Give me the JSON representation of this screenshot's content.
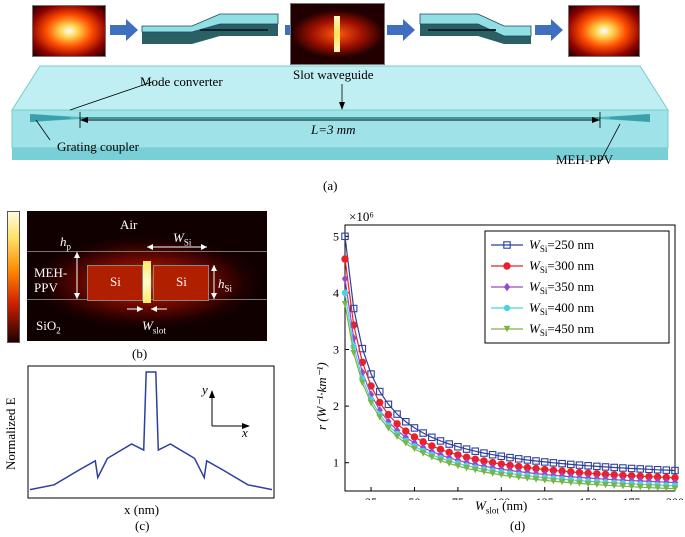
{
  "panel_a": {
    "caption": "(a)",
    "labels": {
      "mode_converter": "Mode converter",
      "slot_waveguide": "Slot waveguide",
      "length": "L=3 mm",
      "grating_coupler": "Grating coupler",
      "meh_ppv": "MEH-PPV"
    }
  },
  "panel_b": {
    "caption": "(b)",
    "labels": {
      "air": "Air",
      "hp_base": "h",
      "hp_sub": "p",
      "wsi_base": "W",
      "wsi_sub": "Si",
      "meh_line1": "MEH-",
      "meh_line2": "PPV",
      "si_left": "Si",
      "si_right": "Si",
      "hsi_base": "h",
      "hsi_sub": "Si",
      "sio2_base": "SiO",
      "sio2_sub": "2",
      "wslot_base": "W",
      "wslot_sub": "slot"
    }
  },
  "panel_c": {
    "caption": "(c)",
    "ylabel": "Normalized E",
    "xlabel": "x (nm)",
    "axis_y": "y",
    "axis_x": "x"
  },
  "panel_d": {
    "caption": "(d)",
    "xlabel_base": "W",
    "xlabel_sub": "slot",
    "xlabel_unit": " (nm)",
    "ylabel": "r (W⁻¹·km⁻¹)",
    "multiplier": "×10⁶"
  },
  "chart_data": [
    {
      "type": "line",
      "title": "",
      "xlabel": "W_slot (nm)",
      "ylabel": "r (W^-1·km^-1)",
      "y_multiplier": "×10^6",
      "xlim": [
        10,
        200
      ],
      "ylim": [
        0.5,
        5.2
      ],
      "xticks": [
        25,
        50,
        75,
        100,
        125,
        150,
        175,
        200
      ],
      "yticks": [
        1,
        2,
        3,
        4,
        5
      ],
      "legend_position": "top-right",
      "series": [
        {
          "name": "W_Si=250 nm",
          "marker": "square",
          "color": "#2e3f9e",
          "a": 5.0,
          "b": 0.62,
          "c": 0.92
        },
        {
          "name": "W_Si=300 nm",
          "marker": "circle",
          "color": "#e8212c",
          "a": 4.6,
          "b": 0.5,
          "c": 0.95
        },
        {
          "name": "W_Si=350 nm",
          "marker": "diamond",
          "color": "#9a48c8",
          "a": 4.25,
          "b": 0.42,
          "c": 1.0
        },
        {
          "name": "W_Si=400 nm",
          "marker": "hexagon",
          "color": "#49d3df",
          "a": 4.0,
          "b": 0.36,
          "c": 1.07
        },
        {
          "name": "W_Si=450 nm",
          "marker": "triangle-down",
          "color": "#7cb342",
          "a": 3.8,
          "b": 0.3,
          "c": 1.15
        }
      ],
      "x_values": [
        10,
        15,
        20,
        25,
        30,
        35,
        40,
        45,
        50,
        55,
        60,
        65,
        70,
        75,
        80,
        85,
        90,
        95,
        100,
        105,
        110,
        115,
        120,
        125,
        130,
        135,
        140,
        145,
        150,
        155,
        160,
        165,
        170,
        175,
        180,
        185,
        190,
        195,
        200
      ]
    },
    {
      "type": "line",
      "title": "",
      "xlabel": "x (nm)",
      "ylabel": "Normalized E",
      "description_points": [
        [
          0,
          0.02
        ],
        [
          0.1,
          0.06
        ],
        [
          0.2,
          0.18
        ],
        [
          0.27,
          0.26
        ],
        [
          0.28,
          0.12
        ],
        [
          0.32,
          0.28
        ],
        [
          0.42,
          0.4
        ],
        [
          0.47,
          0.35
        ],
        [
          0.48,
          1.0
        ],
        [
          0.52,
          1.0
        ],
        [
          0.53,
          0.35
        ],
        [
          0.58,
          0.4
        ],
        [
          0.68,
          0.28
        ],
        [
          0.72,
          0.12
        ],
        [
          0.73,
          0.26
        ],
        [
          0.8,
          0.18
        ],
        [
          0.9,
          0.06
        ],
        [
          1.0,
          0.02
        ]
      ]
    }
  ]
}
